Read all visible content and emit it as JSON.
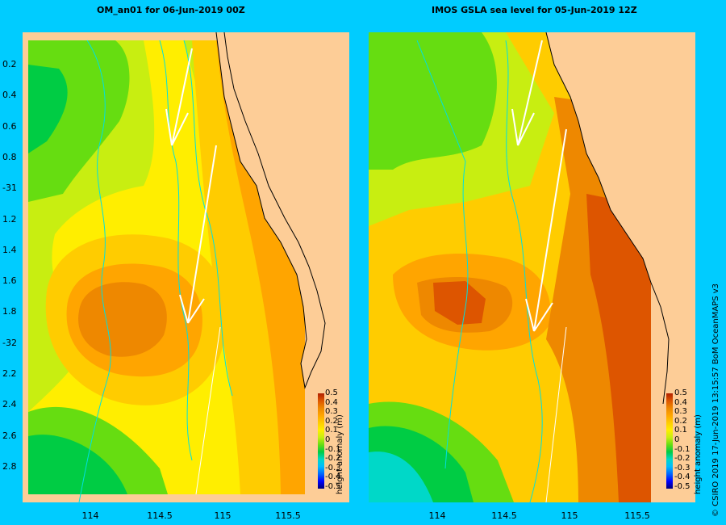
{
  "left_panel": {
    "title": "OM_an01  for 06-Jun-2019 00Z",
    "lat_labels": [
      "0.2",
      "0.4",
      "0.6",
      "0.8",
      "-31",
      "1.2",
      "1.4",
      "1.6",
      "1.8",
      "-32",
      "2.2",
      "2.4",
      "2.6",
      "2.8"
    ],
    "lon_labels": [
      "114",
      "114.5",
      "115",
      "115.5"
    ]
  },
  "right_panel": {
    "title": "IMOS GSLA sea level  for 05-Jun-2019 12Z",
    "lon_labels": [
      "114",
      "114.5",
      "115",
      "115.5"
    ]
  },
  "colorbar": {
    "ticks": [
      "0.5",
      "0.4",
      "0.3",
      "0.2",
      "0.1",
      "0",
      "-0.1",
      "-0.2",
      "-0.3",
      "-0.4",
      "-0.5"
    ],
    "label": "height anomaly (m)",
    "colors": [
      "#00007a",
      "#0000ff",
      "#0066ff",
      "#00bbff",
      "#00d8c8",
      "#00cc44",
      "#66dd11",
      "#c8ee11",
      "#ffee00",
      "#ffcc00",
      "#ffa500",
      "#ee8800",
      "#dd5500",
      "#b02000"
    ]
  },
  "credit": "© CSIRO 2019   17-Jun-2019 13:15:57 BoM OceanMAPS v3",
  "palette": {
    "land": "#fdcd97",
    "background": "#00ccff",
    "contour": "#00e0e0"
  }
}
